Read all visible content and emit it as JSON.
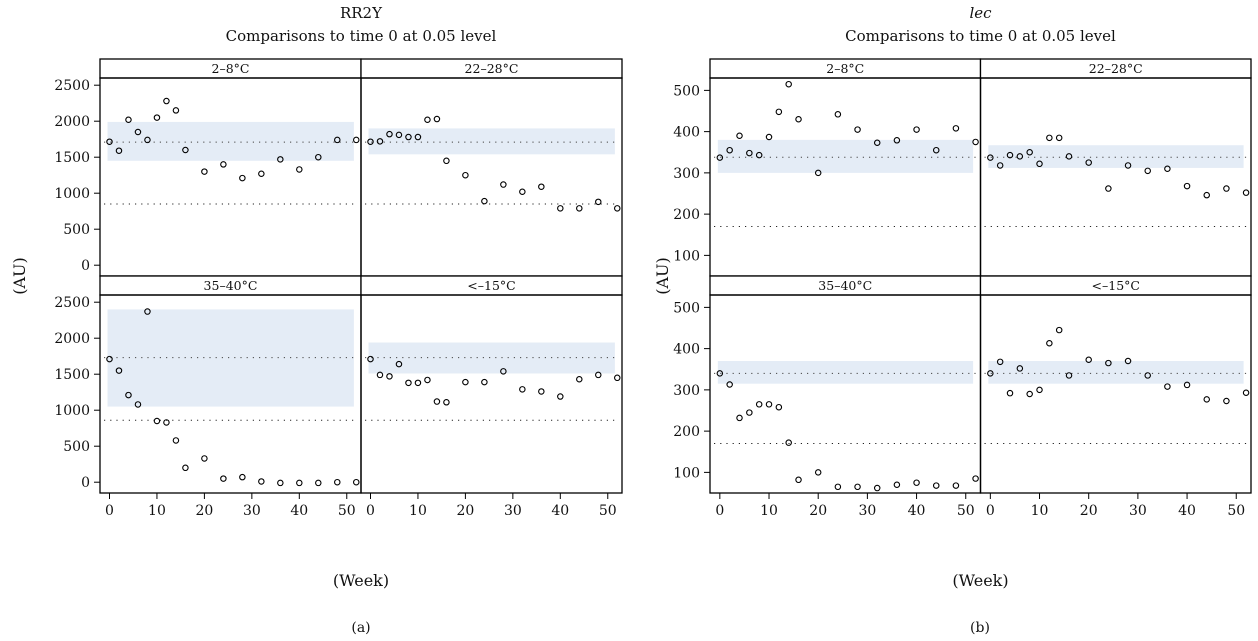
{
  "figure": {
    "xlabel": "(Week)",
    "ylabel": "(AU)",
    "colors": {
      "band": "#e4ecf6",
      "frame": "#000000",
      "point": "#000000"
    }
  },
  "chart_data": [
    {
      "type": "scatter",
      "title": "RR2Y",
      "title_italic": false,
      "subtitle": "Comparisons to time 0 at 0.05 level",
      "caption": "(a)",
      "xlim": [
        -2,
        53
      ],
      "ylim": [
        -150,
        2600
      ],
      "xticks": [
        0,
        10,
        20,
        30,
        40,
        50
      ],
      "yticks": [
        0,
        500,
        1000,
        1500,
        2000,
        2500
      ],
      "panels": [
        {
          "label": "2–8°C",
          "band": [
            1450,
            1990
          ],
          "ref_line": 1710,
          "lower_line": 850,
          "points": [
            [
              0,
              1715
            ],
            [
              2,
              1590
            ],
            [
              4,
              2020
            ],
            [
              6,
              1850
            ],
            [
              8,
              1740
            ],
            [
              10,
              2050
            ],
            [
              12,
              2280
            ],
            [
              14,
              2150
            ],
            [
              16,
              1600
            ],
            [
              20,
              1300
            ],
            [
              24,
              1400
            ],
            [
              28,
              1210
            ],
            [
              32,
              1270
            ],
            [
              36,
              1470
            ],
            [
              40,
              1330
            ],
            [
              44,
              1500
            ],
            [
              48,
              1740
            ],
            [
              52,
              1740
            ]
          ]
        },
        {
          "label": "22–28°C",
          "band": [
            1540,
            1900
          ],
          "ref_line": 1710,
          "lower_line": 850,
          "points": [
            [
              0,
              1715
            ],
            [
              2,
              1720
            ],
            [
              4,
              1820
            ],
            [
              6,
              1810
            ],
            [
              8,
              1780
            ],
            [
              10,
              1780
            ],
            [
              12,
              2020
            ],
            [
              14,
              2030
            ],
            [
              16,
              1450
            ],
            [
              20,
              1250
            ],
            [
              24,
              890
            ],
            [
              28,
              1120
            ],
            [
              32,
              1020
            ],
            [
              36,
              1090
            ],
            [
              40,
              790
            ],
            [
              44,
              790
            ],
            [
              48,
              880
            ],
            [
              52,
              790
            ]
          ]
        },
        {
          "label": "35–40°C",
          "band": [
            1050,
            2400
          ],
          "ref_line": 1730,
          "lower_line": 860,
          "points": [
            [
              0,
              1710
            ],
            [
              2,
              1550
            ],
            [
              4,
              1210
            ],
            [
              6,
              1080
            ],
            [
              8,
              2370
            ],
            [
              10,
              850
            ],
            [
              12,
              830
            ],
            [
              14,
              580
            ],
            [
              16,
              200
            ],
            [
              20,
              330
            ],
            [
              24,
              50
            ],
            [
              28,
              70
            ],
            [
              32,
              10
            ],
            [
              36,
              -10
            ],
            [
              40,
              -10
            ],
            [
              44,
              -10
            ],
            [
              48,
              0
            ],
            [
              52,
              0
            ]
          ]
        },
        {
          "label": "<–15°C",
          "band": [
            1510,
            1940
          ],
          "ref_line": 1730,
          "lower_line": 860,
          "points": [
            [
              0,
              1710
            ],
            [
              2,
              1490
            ],
            [
              4,
              1470
            ],
            [
              6,
              1640
            ],
            [
              8,
              1380
            ],
            [
              10,
              1380
            ],
            [
              12,
              1420
            ],
            [
              14,
              1120
            ],
            [
              16,
              1110
            ],
            [
              20,
              1390
            ],
            [
              24,
              1390
            ],
            [
              28,
              1540
            ],
            [
              32,
              1290
            ],
            [
              36,
              1260
            ],
            [
              40,
              1190
            ],
            [
              44,
              1430
            ],
            [
              48,
              1490
            ],
            [
              52,
              1450
            ]
          ]
        }
      ]
    },
    {
      "type": "scatter",
      "title": "lec",
      "title_italic": true,
      "subtitle": "Comparisons to time 0 at 0.05 level",
      "caption": "(b)",
      "xlim": [
        -2,
        53
      ],
      "ylim": [
        50,
        530
      ],
      "xticks": [
        0,
        10,
        20,
        30,
        40,
        50
      ],
      "yticks": [
        100,
        200,
        300,
        400,
        500
      ],
      "panels": [
        {
          "label": "2–8°C",
          "band": [
            300,
            380
          ],
          "ref_line": 338,
          "lower_line": 170,
          "points": [
            [
              0,
              337
            ],
            [
              2,
              355
            ],
            [
              4,
              390
            ],
            [
              6,
              348
            ],
            [
              8,
              343
            ],
            [
              10,
              387
            ],
            [
              12,
              448
            ],
            [
              14,
              515
            ],
            [
              16,
              430
            ],
            [
              20,
              300
            ],
            [
              24,
              442
            ],
            [
              28,
              405
            ],
            [
              32,
              373
            ],
            [
              36,
              379
            ],
            [
              40,
              405
            ],
            [
              44,
              355
            ],
            [
              48,
              408
            ],
            [
              52,
              375
            ]
          ]
        },
        {
          "label": "22–28°C",
          "band": [
            312,
            367
          ],
          "ref_line": 338,
          "lower_line": 170,
          "points": [
            [
              0,
              337
            ],
            [
              2,
              318
            ],
            [
              4,
              343
            ],
            [
              6,
              340
            ],
            [
              8,
              350
            ],
            [
              10,
              322
            ],
            [
              12,
              385
            ],
            [
              14,
              385
            ],
            [
              16,
              340
            ],
            [
              20,
              325
            ],
            [
              24,
              262
            ],
            [
              28,
              318
            ],
            [
              32,
              305
            ],
            [
              36,
              310
            ],
            [
              40,
              268
            ],
            [
              44,
              246
            ],
            [
              48,
              262
            ],
            [
              52,
              252
            ]
          ]
        },
        {
          "label": "35–40°C",
          "band": [
            315,
            370
          ],
          "ref_line": 340,
          "lower_line": 170,
          "points": [
            [
              0,
              340
            ],
            [
              2,
              313
            ],
            [
              4,
              232
            ],
            [
              6,
              245
            ],
            [
              8,
              265
            ],
            [
              10,
              265
            ],
            [
              12,
              258
            ],
            [
              14,
              172
            ],
            [
              16,
              82
            ],
            [
              20,
              100
            ],
            [
              24,
              65
            ],
            [
              28,
              65
            ],
            [
              32,
              62
            ],
            [
              36,
              70
            ],
            [
              40,
              75
            ],
            [
              44,
              68
            ],
            [
              48,
              68
            ],
            [
              52,
              85
            ]
          ]
        },
        {
          "label": "<–15°C",
          "band": [
            315,
            370
          ],
          "ref_line": 340,
          "lower_line": 170,
          "points": [
            [
              0,
              340
            ],
            [
              2,
              368
            ],
            [
              4,
              292
            ],
            [
              6,
              352
            ],
            [
              8,
              290
            ],
            [
              10,
              300
            ],
            [
              12,
              413
            ],
            [
              14,
              445
            ],
            [
              16,
              335
            ],
            [
              20,
              373
            ],
            [
              24,
              365
            ],
            [
              28,
              370
            ],
            [
              32,
              335
            ],
            [
              36,
              308
            ],
            [
              40,
              312
            ],
            [
              44,
              277
            ],
            [
              48,
              273
            ],
            [
              52,
              293
            ]
          ]
        }
      ]
    }
  ]
}
